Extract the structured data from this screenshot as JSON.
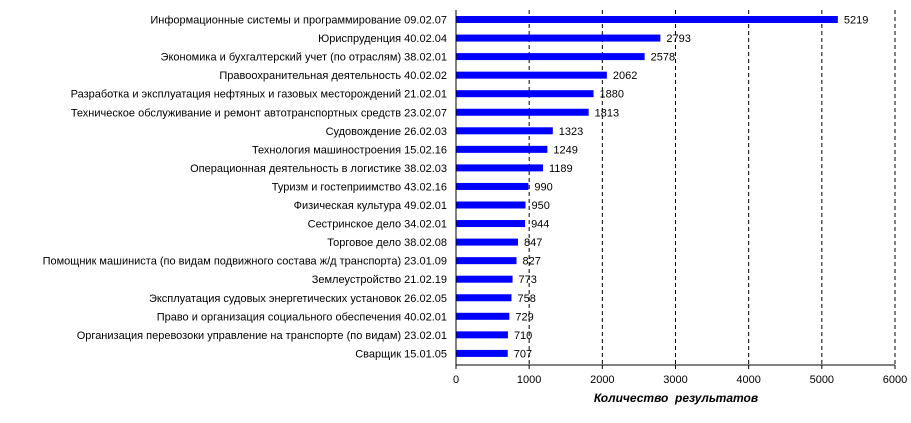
{
  "chart_data": {
    "type": "bar",
    "orientation": "horizontal",
    "title": "",
    "xlabel": "Количество  результатов",
    "ylabel": "",
    "xlim": [
      0,
      6000
    ],
    "xticks": [
      "0",
      "1000",
      "2000",
      "3000",
      "4000",
      "5000",
      "6000"
    ],
    "grid": "vertical dashed",
    "legend": "none",
    "categories": [
      "Информационные системы и программирование 09.02.07",
      "Юриспруденция 40.02.04",
      "Экономика и бухгалтерский учет  (по отраслям) 38.02.01",
      "Правоохранительная деятельность 40.02.02",
      "Разработка и эксплуатация нефтяных и газовых месторождений 21.02.01",
      "Техническое обслуживание и ремонт автотранспортных средств  23.02.07",
      "Судовождение 26.02.03",
      "Технология машиностроения 15.02.16",
      "Операционная деятельность в логистике 38.02.03",
      "Туризм и гостеприимство 43.02.16",
      "Физическая культура 49.02.01",
      "Сестринское дело 34.02.01",
      "Торговое дело 38.02.08",
      "Помощник машиниста (по видам подвижного состава ж/д транспорта) 23.01.09",
      "Землеустройство 21.02.19",
      "Эксплуатация судовых  энергетических установок  26.02.05",
      "Право и организация социального обеспечения 40.02.01",
      "Организация перевозоки управление на транспорте (по видам) 23.02.01",
      "Сварщик 15.01.05"
    ],
    "values": [
      5219,
      2793,
      2578,
      2062,
      1880,
      1813,
      1323,
      1249,
      1189,
      990,
      950,
      944,
      847,
      827,
      773,
      758,
      729,
      710,
      707
    ],
    "bar_color": "#0000ff",
    "text_color": "#000000"
  }
}
